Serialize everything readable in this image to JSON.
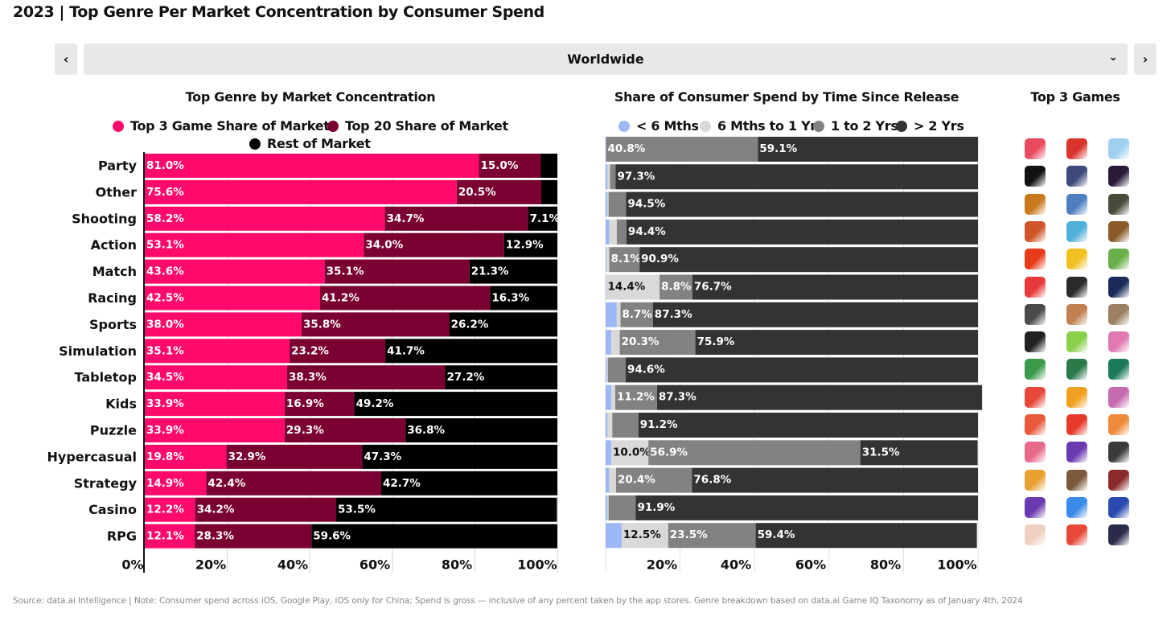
{
  "title": "2023 | Top Genre Per Market Concentration by Consumer Spend",
  "region_selector": {
    "value": "Worldwide",
    "prev_icon": "chevron-left-icon",
    "next_icon": "chevron-right-icon",
    "dropdown_icon": "chevron-down-icon"
  },
  "colors": {
    "top3": "#ff0a6c",
    "top20": "#7a0032",
    "rest": "#000000",
    "lt6m": "#9db8f7",
    "m6to1y": "#d9d9d9",
    "y1to2": "#828282",
    "gt2y": "#333333"
  },
  "chart_data": [
    {
      "type": "bar",
      "orientation": "horizontal",
      "stacked": true,
      "title": "Top Genre by Market Concentration",
      "categories": [
        "Party",
        "Other",
        "Shooting",
        "Action",
        "Match",
        "Racing",
        "Sports",
        "Simulation",
        "Tabletop",
        "Kids",
        "Puzzle",
        "Hypercasual",
        "Strategy",
        "Casino",
        "RPG"
      ],
      "series": [
        {
          "name": "Top 3 Game Share of Market",
          "values": [
            81.0,
            75.6,
            58.2,
            53.1,
            43.6,
            42.5,
            38.0,
            35.1,
            34.5,
            33.9,
            33.9,
            19.8,
            14.9,
            12.2,
            12.1
          ]
        },
        {
          "name": "Top 20 Share of Market",
          "values": [
            15.0,
            20.5,
            34.7,
            34.0,
            35.1,
            41.2,
            35.8,
            23.2,
            38.3,
            16.9,
            29.3,
            32.9,
            42.4,
            34.2,
            28.3
          ]
        },
        {
          "name": "Rest of Market",
          "values": [
            4.0,
            3.9,
            7.1,
            12.9,
            21.3,
            16.3,
            26.2,
            41.7,
            27.2,
            49.2,
            36.8,
            47.3,
            42.7,
            53.5,
            59.6
          ]
        }
      ],
      "labels": [
        [
          "81.0%",
          "15.0%",
          ""
        ],
        [
          "75.6%",
          "20.5%",
          ""
        ],
        [
          "58.2%",
          "34.7%",
          "7.1%"
        ],
        [
          "53.1%",
          "34.0%",
          "12.9%"
        ],
        [
          "43.6%",
          "35.1%",
          "21.3%"
        ],
        [
          "42.5%",
          "41.2%",
          "16.3%"
        ],
        [
          "38.0%",
          "35.8%",
          "26.2%"
        ],
        [
          "35.1%",
          "23.2%",
          "41.7%"
        ],
        [
          "34.5%",
          "38.3%",
          "27.2%"
        ],
        [
          "33.9%",
          "16.9%",
          "49.2%"
        ],
        [
          "33.9%",
          "29.3%",
          "36.8%"
        ],
        [
          "19.8%",
          "32.9%",
          "47.3%"
        ],
        [
          "14.9%",
          "42.4%",
          "42.7%"
        ],
        [
          "12.2%",
          "34.2%",
          "53.5%"
        ],
        [
          "12.1%",
          "28.3%",
          "59.6%"
        ]
      ],
      "xticks": [
        "0%",
        "20%",
        "40%",
        "60%",
        "80%",
        "100%"
      ],
      "xlim": [
        0,
        100
      ],
      "legend_position": "top",
      "grid": true
    },
    {
      "type": "bar",
      "orientation": "horizontal",
      "stacked": true,
      "title": "Share of Consumer Spend by Time Since Release",
      "categories": [
        "Party",
        "Other",
        "Shooting",
        "Action",
        "Match",
        "Racing",
        "Sports",
        "Simulation",
        "Tabletop",
        "Kids",
        "Puzzle",
        "Hypercasual",
        "Strategy",
        "Casino",
        "RPG"
      ],
      "series": [
        {
          "name": "< 6 Mths",
          "values": [
            0.1,
            0.5,
            0.5,
            1.0,
            0.2,
            0.1,
            3.0,
            1.5,
            0.3,
            1.5,
            0.5,
            1.5,
            1.0,
            0.5,
            4.3
          ]
        },
        {
          "name": "6 Mths to 1 Yr",
          "values": [
            0.0,
            0.7,
            0.3,
            2.0,
            0.8,
            14.4,
            1.0,
            2.3,
            0.3,
            1.1,
            1.3,
            10.0,
            1.8,
            0.3,
            12.5
          ]
        },
        {
          "name": "1 to 2 Yrs",
          "values": [
            40.8,
            1.5,
            4.7,
            2.6,
            8.1,
            8.8,
            8.7,
            20.3,
            4.8,
            11.2,
            7.0,
            56.9,
            20.4,
            7.3,
            23.5
          ]
        },
        {
          "name": "> 2 Yrs",
          "values": [
            59.1,
            97.3,
            94.5,
            94.4,
            90.9,
            76.7,
            87.3,
            75.9,
            94.6,
            87.3,
            91.2,
            31.5,
            76.8,
            91.9,
            59.4
          ]
        }
      ],
      "labels": [
        [
          "",
          "",
          "40.8%",
          "59.1%"
        ],
        [
          "",
          "",
          "",
          "97.3%"
        ],
        [
          "",
          "",
          "",
          "94.5%"
        ],
        [
          "",
          "",
          "",
          "94.4%"
        ],
        [
          "",
          "",
          "8.1%",
          "90.9%"
        ],
        [
          "",
          "14.4%",
          "8.8%",
          "76.7%"
        ],
        [
          "",
          "",
          "8.7%",
          "87.3%"
        ],
        [
          "",
          "",
          "20.3%",
          "75.9%"
        ],
        [
          "",
          "",
          "",
          "94.6%"
        ],
        [
          "",
          "",
          "11.2%",
          "87.3%"
        ],
        [
          "",
          "",
          "",
          "91.2%"
        ],
        [
          "",
          "10.0%",
          "56.9%",
          "31.5%"
        ],
        [
          "",
          "",
          "20.4%",
          "76.8%"
        ],
        [
          "",
          "",
          "",
          "91.9%"
        ],
        [
          "",
          "12.5%",
          "23.5%",
          "59.4%"
        ]
      ],
      "xticks": [
        "20%",
        "40%",
        "60%",
        "80%",
        "100%"
      ],
      "xlim": [
        0,
        100
      ],
      "legend_position": "top",
      "grid": true
    }
  ],
  "top_games": {
    "title": "Top 3 Games",
    "icons": [
      [
        "#e84a5f",
        "#d8342c",
        "#9fd0f0"
      ],
      [
        "#111111",
        "#3d4a7a",
        "#2a1a3a"
      ],
      [
        "#c8791e",
        "#4f7fc0",
        "#4a4a3a"
      ],
      [
        "#d0552a",
        "#4fb0d8",
        "#8a5a2a"
      ],
      [
        "#e83b1a",
        "#f0c020",
        "#6ab04a"
      ],
      [
        "#e83a3a",
        "#2a2a2a",
        "#1a2a5a"
      ],
      [
        "#4a4a4a",
        "#c08050",
        "#9a8060"
      ],
      [
        "#222222",
        "#8ad04a",
        "#e07ab0"
      ],
      [
        "#3a9a4a",
        "#2a7a4a",
        "#1a7a5a"
      ],
      [
        "#e8483a",
        "#f0a020",
        "#c86ab0"
      ],
      [
        "#e85a3a",
        "#e83a2a",
        "#f08a3a"
      ],
      [
        "#e86a8a",
        "#6a3ab0",
        "#3a3a3a"
      ],
      [
        "#e8a030",
        "#7a5a3a",
        "#8a2a2a"
      ],
      [
        "#6a3ab0",
        "#3a8ae8",
        "#2a4ab0"
      ],
      [
        "#f0d0c0",
        "#e84a3a",
        "#2a2a4a"
      ]
    ]
  },
  "footnote": "Source: data.ai Intelligence | Note: Consumer spend across iOS, Google Play, iOS only for China; Spend is gross — inclusive of any percent taken by the app stores. Genre breakdown based on data.ai Game IQ Taxonomy as of January 4th, 2024"
}
